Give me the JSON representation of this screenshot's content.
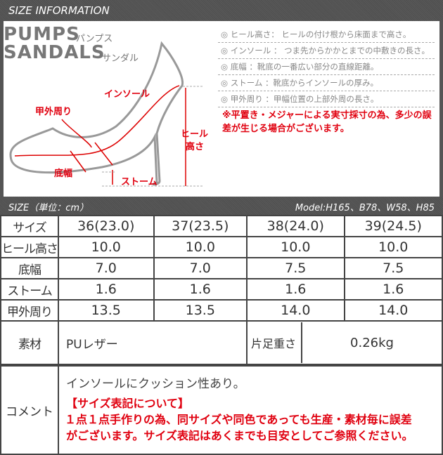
{
  "header": {
    "title": "SIZE INFORMATION"
  },
  "brand": {
    "pumps": "PUMPS",
    "pumps_kana": "パンプス",
    "sandals": "SANDALS",
    "sandals_kana": "サンダル"
  },
  "diagram_labels": {
    "insole": "インソール",
    "instep": "甲外周り",
    "width": "底幅",
    "storm": "ストーム",
    "heel": "ヒール",
    "heel2": "高さ"
  },
  "notes": [
    "◎ ヒール高さ： ヒールの付け根から床面まで高さ。",
    "◎ インソール ： つま先からかかとまでの中敷きの長さ。",
    "◎ 底幅 ：靴底の一番広い部分の直線距離。",
    "◎ ストーム ：靴底からインソールの厚み。",
    "◎ 甲外周り ：甲幅位置の上部外周の長さ。"
  ],
  "warning": "※平置き・メジャーによる実寸採寸の為、多少の誤差が生じる場合がございます。",
  "size_bar": {
    "label": "SIZE（単位：cm）",
    "model": "Model:H165、B78、W58、H85"
  },
  "table": {
    "header": [
      "サイズ",
      "36(23.0)",
      "37(23.5)",
      "38(24.0)",
      "39(24.5)"
    ],
    "rows": [
      [
        "ヒール高さ",
        "10.0",
        "10.0",
        "10.0",
        "10.0"
      ],
      [
        "底幅",
        "7.0",
        "7.0",
        "7.5",
        "7.5"
      ],
      [
        "ストーム",
        "1.6",
        "1.6",
        "1.6",
        "1.6"
      ],
      [
        "甲外周り",
        "13.5",
        "13.5",
        "14.0",
        "14.0"
      ]
    ],
    "material_label": "素材",
    "material": "PUレザー",
    "weight_label": "片足重さ",
    "weight": "0.26kg"
  },
  "comment": {
    "label": "コメント",
    "text": "インソールにクッション性あり。",
    "notice_title": "【サイズ表記について】",
    "notice_line1": "１点１点手作りの為、同サイズや同色であっても生産・素材毎に誤差",
    "notice_line2": "がございます。サイズ表記はあくまでも目安としてご参照ください。"
  },
  "colors": {
    "accent": "#e0000f",
    "bar": "#555555"
  }
}
